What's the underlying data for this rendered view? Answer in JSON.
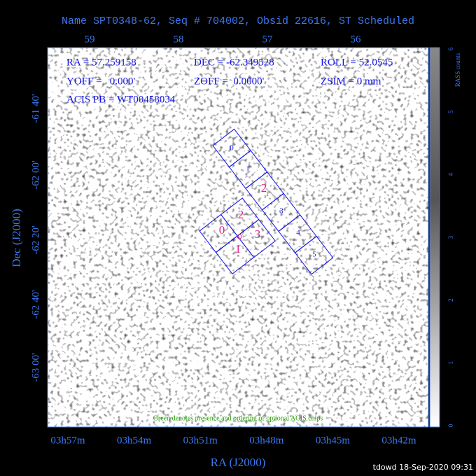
{
  "header": {
    "title": "Name SPT0348-62, Seq # 704002, Obsid 22616, ST Scheduled"
  },
  "axes": {
    "top_labels": [
      "59",
      "58",
      "57",
      "56"
    ],
    "left_labels": [
      "-61 40'",
      "-62 00'",
      "-62 20'",
      "-62 40'",
      "-63 00'"
    ],
    "left_title": "Dec (J2000)",
    "bottom_labels": [
      "03h57m",
      "03h54m",
      "03h51m",
      "03h48m",
      "03h45m",
      "03h42m"
    ],
    "bottom_title": "RA (J2000)"
  },
  "colorbar": {
    "title": "RASS counts",
    "ticks": [
      "0",
      "1",
      "2",
      "3",
      "4",
      "5",
      "6"
    ]
  },
  "info": {
    "ra": "RA = 57.259158",
    "dec": "DEC = -62.349528",
    "roll": "ROLL = 52.0545",
    "yoff": "YOFF =   0.000'",
    "zoff": "ZOFF =  0.0000'",
    "zsim": "ZSIM = 0 mm",
    "pb": "ACIS PB = WT00458034"
  },
  "chips_i": [
    "0",
    "2",
    "3",
    "1"
  ],
  "chips_s": [
    "0",
    "1",
    "2",
    "3",
    "4",
    "5"
  ],
  "optional_mark": "1",
  "note": "Green denotes presence and ordering of optional ACIS chips",
  "footer": "tdowd 18-Sep-2020 09:31"
}
